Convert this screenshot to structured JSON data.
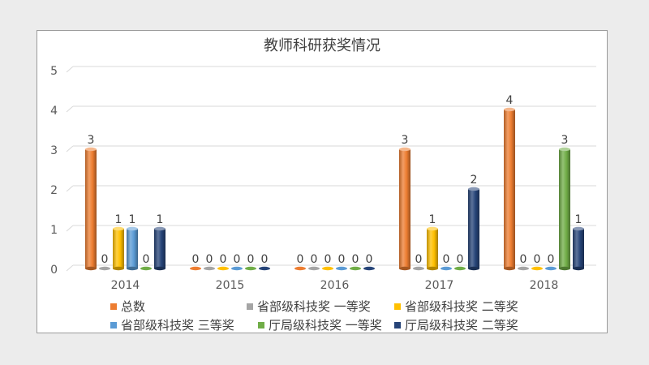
{
  "chart_data": {
    "type": "bar",
    "title": "教师科研获奖情况",
    "categories": [
      "2014",
      "2015",
      "2016",
      "2017",
      "2018"
    ],
    "yticks": [
      "0",
      "1",
      "2",
      "3",
      "4",
      "5"
    ],
    "ylim": [
      0,
      5
    ],
    "grid": true,
    "legend_position": "bottom",
    "series": [
      {
        "name": "总数",
        "color": "#ED7D31",
        "values": [
          3,
          0,
          0,
          3,
          4
        ]
      },
      {
        "name": "省部级科技奖 一等奖",
        "color": "#A5A5A5",
        "values": [
          0,
          0,
          0,
          0,
          0
        ]
      },
      {
        "name": "省部级科技奖 二等奖",
        "color": "#FFC000",
        "values": [
          1,
          0,
          0,
          1,
          0
        ]
      },
      {
        "name": "省部级科技奖 三等奖",
        "color": "#5B9BD5",
        "values": [
          1,
          0,
          0,
          0,
          0
        ]
      },
      {
        "name": "厅局级科技奖 一等奖",
        "color": "#70AD47",
        "values": [
          0,
          0,
          0,
          0,
          3
        ]
      },
      {
        "name": "厅局级科技奖 二等奖",
        "color": "#264478",
        "values": [
          1,
          0,
          0,
          2,
          1
        ]
      }
    ]
  }
}
